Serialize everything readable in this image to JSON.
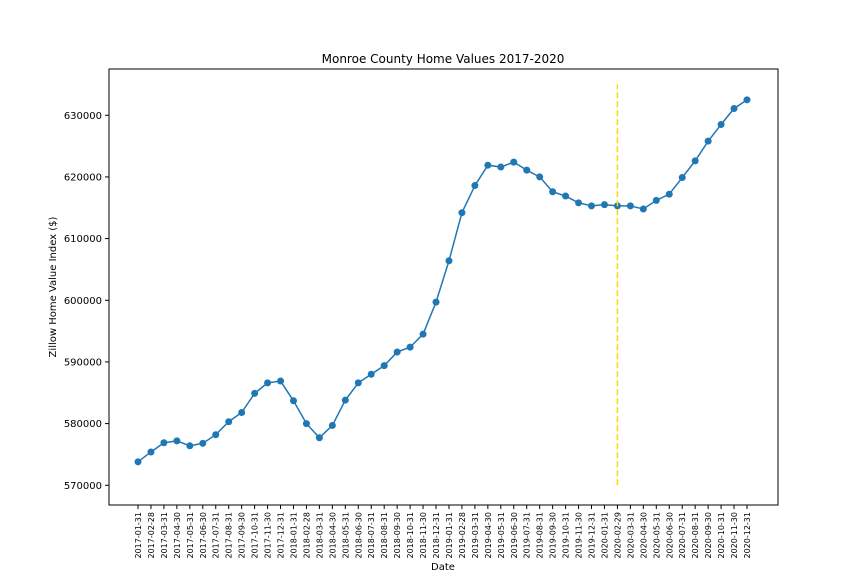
{
  "chart_data": {
    "type": "line",
    "title": "Monroe County Home Values 2017-2020",
    "xlabel": "Date",
    "ylabel": "Zillow Home Value Index ($)",
    "x": [
      "2017-01-31",
      "2017-02-28",
      "2017-03-31",
      "2017-04-30",
      "2017-05-31",
      "2017-06-30",
      "2017-07-31",
      "2017-08-31",
      "2017-09-30",
      "2017-10-31",
      "2017-11-30",
      "2017-12-31",
      "2018-01-31",
      "2018-02-28",
      "2018-03-31",
      "2018-04-30",
      "2018-05-31",
      "2018-06-30",
      "2018-07-31",
      "2018-08-31",
      "2018-09-30",
      "2018-10-31",
      "2018-11-30",
      "2018-12-31",
      "2019-01-31",
      "2019-02-28",
      "2019-03-31",
      "2019-04-30",
      "2019-05-31",
      "2019-06-30",
      "2019-07-31",
      "2019-08-31",
      "2019-09-30",
      "2019-10-31",
      "2019-11-30",
      "2019-12-31",
      "2020-01-31",
      "2020-02-29",
      "2020-03-31",
      "2020-04-30",
      "2020-05-31",
      "2020-06-30",
      "2020-07-31",
      "2020-08-31",
      "2020-09-30",
      "2020-10-31",
      "2020-11-30",
      "2020-12-31"
    ],
    "series": [
      {
        "color": "#1f77b4",
        "values": [
          573800,
          575400,
          576900,
          577200,
          576400,
          576800,
          578200,
          580300,
          581800,
          584900,
          586600,
          586900,
          583700,
          580000,
          577700,
          579700,
          583800,
          586600,
          588000,
          589400,
          591600,
          592400,
          594500,
          599700,
          606400,
          614200,
          618600,
          621900,
          621600,
          622400,
          621100,
          620000,
          617600,
          616900,
          615800,
          615300,
          615500,
          615300,
          615300,
          614800,
          616200,
          617200,
          619900,
          622600,
          625800,
          628500,
          631100,
          632500
        ]
      }
    ],
    "vline": {
      "x": "2020-02-29",
      "ymin": 570000,
      "ymax": 635000,
      "color": "#ffd700",
      "style": "dashed"
    },
    "yticks": [
      570000,
      580000,
      590000,
      600000,
      610000,
      620000,
      630000
    ],
    "ylim": [
      566800,
      637500
    ],
    "grid": false,
    "legend": "none"
  }
}
